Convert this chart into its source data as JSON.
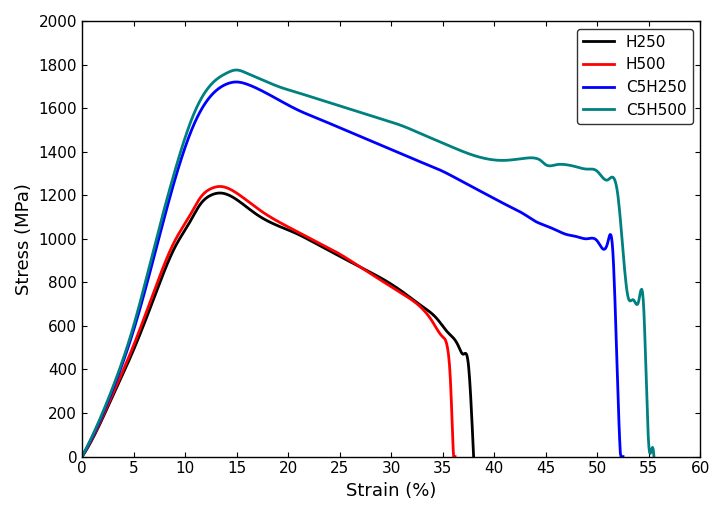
{
  "title": "",
  "xlabel": "Strain (%)",
  "ylabel": "Stress (MPa)",
  "xlim": [
    0,
    60
  ],
  "ylim": [
    0,
    2000
  ],
  "xticks": [
    0,
    5,
    10,
    15,
    20,
    25,
    30,
    35,
    40,
    45,
    50,
    55,
    60
  ],
  "yticks": [
    0,
    200,
    400,
    600,
    800,
    1000,
    1200,
    1400,
    1600,
    1800,
    2000
  ],
  "series": [
    {
      "label": "H250",
      "color": "#000000",
      "linewidth": 2.0,
      "x": [
        0,
        1,
        3,
        5,
        7,
        9,
        10.5,
        11.5,
        12.5,
        13.5,
        15,
        17,
        19,
        21,
        23,
        25,
        27,
        29,
        31,
        33,
        34.5,
        35.5,
        36.5,
        37.0,
        37.5,
        37.8,
        38.0
      ],
      "y": [
        0,
        80,
        280,
        490,
        730,
        960,
        1080,
        1160,
        1200,
        1210,
        1180,
        1110,
        1060,
        1020,
        970,
        920,
        870,
        820,
        760,
        690,
        630,
        570,
        510,
        470,
        420,
        200,
        0
      ]
    },
    {
      "label": "H500",
      "color": "#ff0000",
      "linewidth": 2.0,
      "x": [
        0,
        1,
        3,
        5,
        7,
        9,
        10.5,
        11.5,
        12.5,
        13.5,
        15,
        17,
        19,
        21,
        23,
        25,
        27,
        29,
        31,
        33,
        34.0,
        35.0,
        35.5,
        35.8,
        36.0,
        36.2
      ],
      "y": [
        0,
        85,
        290,
        510,
        760,
        990,
        1110,
        1190,
        1230,
        1240,
        1210,
        1140,
        1080,
        1030,
        980,
        930,
        870,
        810,
        750,
        680,
        620,
        550,
        490,
        300,
        50,
        0
      ]
    },
    {
      "label": "C5H250",
      "color": "#0000ff",
      "linewidth": 2.0,
      "x": [
        0,
        1,
        3,
        5,
        7,
        9,
        11,
        13,
        14,
        15,
        16,
        17,
        19,
        21,
        23,
        25,
        27,
        29,
        31,
        33,
        35,
        37,
        39,
        41,
        43,
        44,
        45,
        46,
        47,
        48,
        49,
        50,
        51,
        51.5,
        52.0,
        52.2,
        52.5
      ],
      "y": [
        0,
        90,
        310,
        580,
        920,
        1270,
        1540,
        1680,
        1710,
        1720,
        1710,
        1690,
        1640,
        1590,
        1550,
        1510,
        1470,
        1430,
        1390,
        1350,
        1310,
        1260,
        1210,
        1160,
        1110,
        1080,
        1060,
        1040,
        1020,
        1010,
        1000,
        990,
        980,
        950,
        300,
        50,
        0
      ]
    },
    {
      "label": "C5H500",
      "color": "#008080",
      "linewidth": 2.0,
      "x": [
        0,
        1,
        3,
        5,
        7,
        9,
        11,
        13,
        14,
        15,
        16,
        17,
        19,
        21,
        23,
        25,
        27,
        29,
        31,
        33,
        35,
        37,
        39,
        41,
        43,
        44,
        44.5,
        45,
        46,
        47,
        48,
        49,
        50,
        51,
        52,
        53,
        53.5,
        54,
        54.5,
        55.0,
        55.2,
        55.5
      ],
      "y": [
        0,
        95,
        320,
        600,
        960,
        1310,
        1590,
        1730,
        1760,
        1775,
        1760,
        1740,
        1700,
        1670,
        1640,
        1610,
        1580,
        1550,
        1520,
        1480,
        1440,
        1400,
        1370,
        1360,
        1370,
        1370,
        1360,
        1340,
        1340,
        1340,
        1330,
        1320,
        1310,
        1270,
        1200,
        730,
        720,
        710,
        690,
        50,
        20,
        0
      ]
    }
  ],
  "legend_loc": "upper right",
  "background_color": "#ffffff",
  "axes_background": "#ffffff"
}
